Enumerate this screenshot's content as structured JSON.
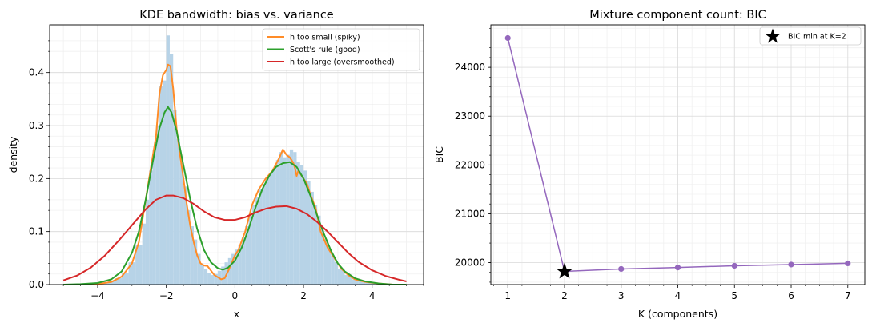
{
  "chart_data": [
    {
      "type": "line",
      "title": "KDE bandwidth: bias vs. variance",
      "xlabel": "x",
      "ylabel": "density",
      "xlim": [
        -5.4,
        5.5
      ],
      "ylim": [
        0,
        0.49
      ],
      "xticks": [
        -4,
        -2,
        0,
        2,
        4
      ],
      "yticks": [
        0.0,
        0.1,
        0.2,
        0.3,
        0.4
      ],
      "grid": true,
      "legend_position": "top-right",
      "histogram": {
        "color": "#b7d3e7",
        "bins": [
          [
            -4.3,
            -4.1,
            0.002
          ],
          [
            -4.1,
            -3.9,
            0.003
          ],
          [
            -3.9,
            -3.7,
            0.005
          ],
          [
            -3.7,
            -3.5,
            0.007
          ],
          [
            -3.5,
            -3.3,
            0.012
          ],
          [
            -3.3,
            -3.1,
            0.022
          ],
          [
            -3.1,
            -2.9,
            0.042
          ],
          [
            -2.9,
            -2.7,
            0.075
          ],
          [
            -2.7,
            -2.6,
            0.115
          ],
          [
            -2.6,
            -2.5,
            0.16
          ],
          [
            -2.5,
            -2.4,
            0.215
          ],
          [
            -2.4,
            -2.3,
            0.255
          ],
          [
            -2.3,
            -2.2,
            0.3
          ],
          [
            -2.2,
            -2.1,
            0.375
          ],
          [
            -2.1,
            -2.0,
            0.385
          ],
          [
            -2.0,
            -1.9,
            0.47
          ],
          [
            -1.9,
            -1.8,
            0.435
          ],
          [
            -1.8,
            -1.7,
            0.33
          ],
          [
            -1.7,
            -1.6,
            0.275
          ],
          [
            -1.6,
            -1.5,
            0.23
          ],
          [
            -1.5,
            -1.4,
            0.185
          ],
          [
            -1.4,
            -1.3,
            0.14
          ],
          [
            -1.3,
            -1.2,
            0.11
          ],
          [
            -1.2,
            -1.1,
            0.085
          ],
          [
            -1.1,
            -1.0,
            0.058
          ],
          [
            -1.0,
            -0.9,
            0.038
          ],
          [
            -0.9,
            -0.8,
            0.03
          ],
          [
            -0.8,
            -0.7,
            0.022
          ],
          [
            -0.7,
            -0.6,
            0.018
          ],
          [
            -0.6,
            -0.5,
            0.02
          ],
          [
            -0.5,
            -0.4,
            0.026
          ],
          [
            -0.4,
            -0.3,
            0.034
          ],
          [
            -0.3,
            -0.2,
            0.042
          ],
          [
            -0.2,
            -0.1,
            0.05
          ],
          [
            -0.1,
            0.0,
            0.058
          ],
          [
            0.0,
            0.1,
            0.066
          ],
          [
            0.1,
            0.2,
            0.074
          ],
          [
            0.2,
            0.3,
            0.09
          ],
          [
            0.3,
            0.4,
            0.11
          ],
          [
            0.4,
            0.5,
            0.13
          ],
          [
            0.5,
            0.6,
            0.15
          ],
          [
            0.6,
            0.7,
            0.165
          ],
          [
            0.7,
            0.8,
            0.18
          ],
          [
            0.8,
            0.9,
            0.19
          ],
          [
            0.9,
            1.0,
            0.2
          ],
          [
            1.0,
            1.1,
            0.21
          ],
          [
            1.1,
            1.2,
            0.22
          ],
          [
            1.2,
            1.3,
            0.235
          ],
          [
            1.3,
            1.4,
            0.25
          ],
          [
            1.4,
            1.5,
            0.24
          ],
          [
            1.5,
            1.6,
            0.245
          ],
          [
            1.6,
            1.7,
            0.255
          ],
          [
            1.7,
            1.8,
            0.25
          ],
          [
            1.8,
            1.9,
            0.232
          ],
          [
            1.9,
            2.0,
            0.225
          ],
          [
            2.0,
            2.1,
            0.215
          ],
          [
            2.1,
            2.2,
            0.195
          ],
          [
            2.2,
            2.3,
            0.175
          ],
          [
            2.3,
            2.4,
            0.15
          ],
          [
            2.4,
            2.5,
            0.13
          ],
          [
            2.5,
            2.6,
            0.105
          ],
          [
            2.6,
            2.7,
            0.085
          ],
          [
            2.7,
            2.8,
            0.068
          ],
          [
            2.8,
            2.9,
            0.055
          ],
          [
            2.9,
            3.0,
            0.043
          ],
          [
            3.0,
            3.2,
            0.03
          ],
          [
            3.2,
            3.4,
            0.018
          ],
          [
            3.4,
            3.6,
            0.01
          ],
          [
            3.6,
            3.8,
            0.006
          ],
          [
            3.8,
            4.0,
            0.004
          ],
          [
            4.0,
            4.2,
            0.002
          ]
        ]
      },
      "series": [
        {
          "name": "h too small (spiky)",
          "color": "#ff8c28",
          "points": [
            [
              -5.0,
              0.0
            ],
            [
              -4.5,
              0.0
            ],
            [
              -4.0,
              0.001
            ],
            [
              -3.6,
              0.005
            ],
            [
              -3.3,
              0.015
            ],
            [
              -3.0,
              0.04
            ],
            [
              -2.8,
              0.08
            ],
            [
              -2.6,
              0.16
            ],
            [
              -2.4,
              0.24
            ],
            [
              -2.3,
              0.28
            ],
            [
              -2.2,
              0.36
            ],
            [
              -2.1,
              0.395
            ],
            [
              -2.0,
              0.405
            ],
            [
              -1.95,
              0.415
            ],
            [
              -1.88,
              0.412
            ],
            [
              -1.8,
              0.37
            ],
            [
              -1.7,
              0.295
            ],
            [
              -1.6,
              0.245
            ],
            [
              -1.5,
              0.2
            ],
            [
              -1.4,
              0.15
            ],
            [
              -1.3,
              0.11
            ],
            [
              -1.2,
              0.08
            ],
            [
              -1.1,
              0.055
            ],
            [
              -1.0,
              0.04
            ],
            [
              -0.9,
              0.036
            ],
            [
              -0.8,
              0.035
            ],
            [
              -0.6,
              0.018
            ],
            [
              -0.4,
              0.01
            ],
            [
              -0.3,
              0.012
            ],
            [
              -0.2,
              0.025
            ],
            [
              -0.1,
              0.04
            ],
            [
              0.0,
              0.055
            ],
            [
              0.1,
              0.065
            ],
            [
              0.3,
              0.1
            ],
            [
              0.5,
              0.15
            ],
            [
              0.7,
              0.18
            ],
            [
              0.9,
              0.2
            ],
            [
              1.1,
              0.215
            ],
            [
              1.3,
              0.24
            ],
            [
              1.4,
              0.255
            ],
            [
              1.5,
              0.245
            ],
            [
              1.6,
              0.24
            ],
            [
              1.7,
              0.23
            ],
            [
              1.75,
              0.22
            ],
            [
              1.8,
              0.205
            ],
            [
              1.85,
              0.215
            ],
            [
              1.95,
              0.205
            ],
            [
              2.1,
              0.19
            ],
            [
              2.2,
              0.17
            ],
            [
              2.35,
              0.145
            ],
            [
              2.5,
              0.1
            ],
            [
              2.7,
              0.07
            ],
            [
              2.9,
              0.05
            ],
            [
              3.1,
              0.03
            ],
            [
              3.3,
              0.018
            ],
            [
              3.5,
              0.01
            ],
            [
              3.8,
              0.005
            ],
            [
              4.2,
              0.002
            ],
            [
              4.6,
              0.0
            ],
            [
              5.0,
              0.0
            ]
          ]
        },
        {
          "name": "Scott's rule (good)",
          "color": "#2ca02c",
          "points": [
            [
              -5.0,
              0.0
            ],
            [
              -4.5,
              0.001
            ],
            [
              -4.0,
              0.003
            ],
            [
              -3.6,
              0.01
            ],
            [
              -3.3,
              0.025
            ],
            [
              -3.0,
              0.06
            ],
            [
              -2.8,
              0.1
            ],
            [
              -2.6,
              0.16
            ],
            [
              -2.4,
              0.23
            ],
            [
              -2.2,
              0.295
            ],
            [
              -2.05,
              0.325
            ],
            [
              -1.95,
              0.335
            ],
            [
              -1.85,
              0.325
            ],
            [
              -1.7,
              0.29
            ],
            [
              -1.5,
              0.225
            ],
            [
              -1.3,
              0.16
            ],
            [
              -1.1,
              0.105
            ],
            [
              -0.9,
              0.065
            ],
            [
              -0.7,
              0.042
            ],
            [
              -0.5,
              0.031
            ],
            [
              -0.35,
              0.028
            ],
            [
              -0.2,
              0.032
            ],
            [
              0.0,
              0.045
            ],
            [
              0.2,
              0.07
            ],
            [
              0.4,
              0.105
            ],
            [
              0.6,
              0.145
            ],
            [
              0.8,
              0.18
            ],
            [
              1.0,
              0.205
            ],
            [
              1.2,
              0.222
            ],
            [
              1.4,
              0.229
            ],
            [
              1.6,
              0.231
            ],
            [
              1.8,
              0.222
            ],
            [
              2.0,
              0.2
            ],
            [
              2.2,
              0.168
            ],
            [
              2.4,
              0.13
            ],
            [
              2.6,
              0.095
            ],
            [
              2.8,
              0.064
            ],
            [
              3.0,
              0.04
            ],
            [
              3.2,
              0.025
            ],
            [
              3.5,
              0.012
            ],
            [
              3.8,
              0.006
            ],
            [
              4.2,
              0.002
            ],
            [
              4.6,
              0.0
            ],
            [
              5.0,
              0.0
            ]
          ]
        },
        {
          "name": "h too large (oversmoothed)",
          "color": "#d62728",
          "points": [
            [
              -5.0,
              0.008
            ],
            [
              -4.6,
              0.017
            ],
            [
              -4.2,
              0.032
            ],
            [
              -3.8,
              0.054
            ],
            [
              -3.4,
              0.082
            ],
            [
              -3.0,
              0.112
            ],
            [
              -2.6,
              0.142
            ],
            [
              -2.3,
              0.16
            ],
            [
              -2.0,
              0.168
            ],
            [
              -1.8,
              0.168
            ],
            [
              -1.5,
              0.163
            ],
            [
              -1.2,
              0.152
            ],
            [
              -0.9,
              0.138
            ],
            [
              -0.6,
              0.127
            ],
            [
              -0.3,
              0.122
            ],
            [
              0.0,
              0.122
            ],
            [
              0.3,
              0.127
            ],
            [
              0.6,
              0.136
            ],
            [
              0.9,
              0.143
            ],
            [
              1.2,
              0.147
            ],
            [
              1.5,
              0.148
            ],
            [
              1.8,
              0.143
            ],
            [
              2.1,
              0.133
            ],
            [
              2.4,
              0.118
            ],
            [
              2.7,
              0.1
            ],
            [
              3.0,
              0.08
            ],
            [
              3.3,
              0.06
            ],
            [
              3.6,
              0.043
            ],
            [
              4.0,
              0.027
            ],
            [
              4.4,
              0.016
            ],
            [
              4.8,
              0.009
            ],
            [
              5.0,
              0.006
            ]
          ]
        }
      ]
    },
    {
      "type": "line",
      "title": "Mixture component count: BIC",
      "xlabel": "K (components)",
      "ylabel": "BIC",
      "xlim": [
        0.7,
        7.3
      ],
      "ylim": [
        19550,
        24870
      ],
      "xticks": [
        1,
        2,
        3,
        4,
        5,
        6,
        7
      ],
      "yticks": [
        20000,
        21000,
        22000,
        23000,
        24000
      ],
      "grid": true,
      "legend_position": "top-right",
      "series": [
        {
          "name": "",
          "color": "#9467bd",
          "x": [
            1,
            2,
            3,
            4,
            5,
            6,
            7
          ],
          "y": [
            24600,
            19820,
            19870,
            19900,
            19935,
            19960,
            19985
          ]
        }
      ],
      "highlight": {
        "name": "BIC min at K=2",
        "x": 2,
        "y": 19820,
        "color": "#000000",
        "marker": "star"
      }
    }
  ]
}
